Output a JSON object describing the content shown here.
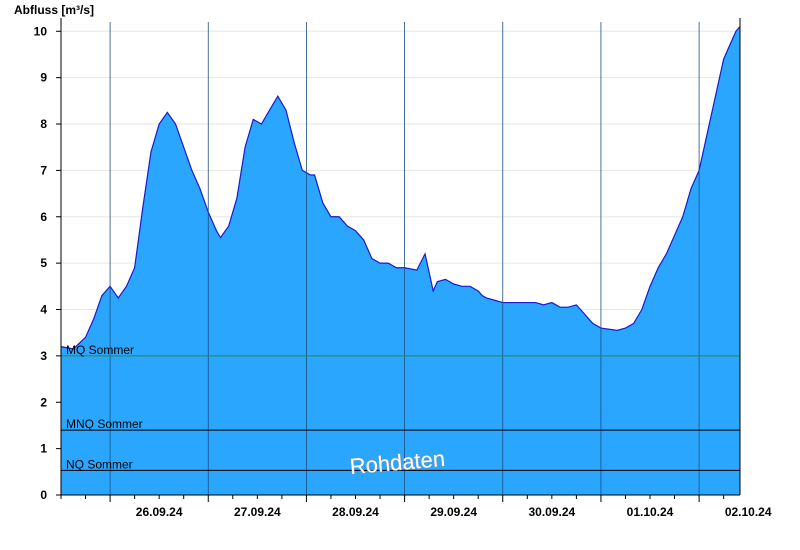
{
  "chart_data": {
    "type": "area",
    "ylabel": "Abfluss [m³/s]",
    "xlabel": "",
    "title": "",
    "ylim": [
      0,
      10.2
    ],
    "yticks": [
      0,
      1,
      2,
      3,
      4,
      5,
      6,
      7,
      8,
      9,
      10
    ],
    "xlim": [
      "2024-09-25T12:00",
      "2024-10-02T10:00"
    ],
    "day_boundaries": [
      "2024-09-26",
      "2024-09-27",
      "2024-09-28",
      "2024-09-29",
      "2024-09-30",
      "2024-10-01",
      "2024-10-02"
    ],
    "day_labels": [
      {
        "label": "26.09.24",
        "at": "2024-09-26T12:00"
      },
      {
        "label": "27.09.24",
        "at": "2024-09-27T12:00"
      },
      {
        "label": "28.09.24",
        "at": "2024-09-28T12:00"
      },
      {
        "label": "29.09.24",
        "at": "2024-09-29T12:00"
      },
      {
        "label": "30.09.24",
        "at": "2024-09-30T12:00"
      },
      {
        "label": "01.10.24",
        "at": "2024-10-01T12:00"
      },
      {
        "label": "02.10.24",
        "at": "2024-10-02T12:00"
      }
    ],
    "grid": true,
    "fill_color": "#2aa6ff",
    "line_color": "#1a1acc",
    "reference_lines": [
      {
        "name": "MQ Sommer",
        "value": 3.0,
        "color": "#2e8b2e"
      },
      {
        "name": "MNQ Sommer",
        "value": 1.4,
        "color": "#000000"
      },
      {
        "name": "NQ Sommer",
        "value": 0.53,
        "color": "#000000"
      }
    ],
    "watermark": "Rohdaten",
    "series": [
      {
        "x": [
          "2024-09-25T12:00",
          "2024-09-25T15:00",
          "2024-09-25T18:00",
          "2024-09-25T20:00",
          "2024-09-25T22:00",
          "2024-09-26T00:00",
          "2024-09-26T02:00",
          "2024-09-26T04:00",
          "2024-09-26T06:00",
          "2024-09-26T08:00",
          "2024-09-26T10:00",
          "2024-09-26T12:00",
          "2024-09-26T14:00",
          "2024-09-26T16:00",
          "2024-09-26T18:00",
          "2024-09-26T20:00",
          "2024-09-26T22:00",
          "2024-09-27T00:00",
          "2024-09-27T01:00",
          "2024-09-27T02:00",
          "2024-09-27T03:00",
          "2024-09-27T05:00",
          "2024-09-27T07:00",
          "2024-09-27T09:00",
          "2024-09-27T11:00",
          "2024-09-27T13:00",
          "2024-09-27T15:00",
          "2024-09-27T17:00",
          "2024-09-27T19:00",
          "2024-09-27T21:00",
          "2024-09-27T23:00",
          "2024-09-28T01:00",
          "2024-09-28T02:00",
          "2024-09-28T03:00",
          "2024-09-28T04:00",
          "2024-09-28T06:00",
          "2024-09-28T08:00",
          "2024-09-28T10:00",
          "2024-09-28T12:00",
          "2024-09-28T14:00",
          "2024-09-28T16:00",
          "2024-09-28T18:00",
          "2024-09-28T20:00",
          "2024-09-28T22:00",
          "2024-09-29T00:00",
          "2024-09-29T03:00",
          "2024-09-29T05:00",
          "2024-09-29T07:00",
          "2024-09-29T08:00",
          "2024-09-29T10:00",
          "2024-09-29T12:00",
          "2024-09-29T14:00",
          "2024-09-29T16:00",
          "2024-09-29T18:00",
          "2024-09-29T19:00",
          "2024-09-29T20:00",
          "2024-09-29T22:00",
          "2024-09-30T00:00",
          "2024-09-30T04:00",
          "2024-09-30T08:00",
          "2024-09-30T10:00",
          "2024-09-30T12:00",
          "2024-09-30T14:00",
          "2024-09-30T16:00",
          "2024-09-30T18:00",
          "2024-09-30T20:00",
          "2024-09-30T22:00",
          "2024-10-01T00:00",
          "2024-10-01T04:00",
          "2024-10-01T06:00",
          "2024-10-01T08:00",
          "2024-10-01T10:00",
          "2024-10-01T12:00",
          "2024-10-01T14:00",
          "2024-10-01T16:00",
          "2024-10-01T18:00",
          "2024-10-01T20:00",
          "2024-10-01T22:00",
          "2024-10-02T00:00",
          "2024-10-02T02:00",
          "2024-10-02T04:00",
          "2024-10-02T06:00",
          "2024-10-02T08:00",
          "2024-10-02T09:00",
          "2024-10-02T10:00"
        ],
        "y": [
          3.2,
          3.15,
          3.4,
          3.8,
          4.3,
          4.5,
          4.25,
          4.5,
          4.9,
          6.2,
          7.4,
          8.0,
          8.25,
          8.0,
          7.5,
          7.0,
          6.6,
          6.1,
          5.9,
          5.7,
          5.55,
          5.8,
          6.4,
          7.5,
          8.1,
          8.0,
          8.3,
          8.6,
          8.3,
          7.6,
          7.0,
          6.9,
          6.9,
          6.6,
          6.3,
          6.0,
          6.0,
          5.8,
          5.7,
          5.5,
          5.1,
          5.0,
          5.0,
          4.9,
          4.9,
          4.85,
          5.2,
          4.4,
          4.6,
          4.65,
          4.55,
          4.5,
          4.5,
          4.4,
          4.3,
          4.25,
          4.2,
          4.15,
          4.15,
          4.15,
          4.1,
          4.15,
          4.05,
          4.05,
          4.1,
          3.9,
          3.7,
          3.6,
          3.55,
          3.6,
          3.7,
          4.0,
          4.5,
          4.9,
          5.2,
          5.6,
          6.0,
          6.6,
          7.0,
          7.8,
          8.6,
          9.4,
          9.8,
          10.0,
          10.1
        ]
      }
    ]
  }
}
